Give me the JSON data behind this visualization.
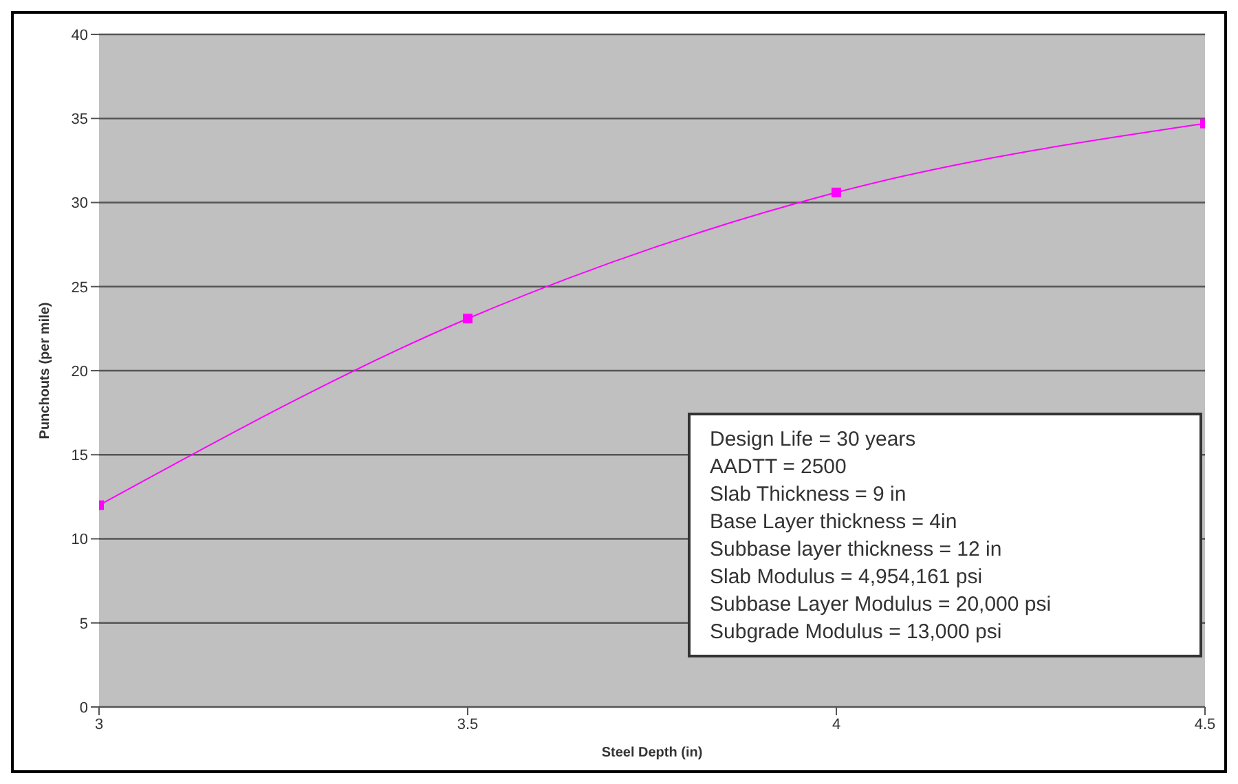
{
  "chart_data": {
    "type": "line",
    "xlabel": "Steel Depth (in)",
    "ylabel": "Punchouts (per mile)",
    "x": [
      3,
      3.5,
      4,
      4.5
    ],
    "series": [
      {
        "color": "#ff00ff",
        "values": [
          12,
          23.1,
          30.6,
          34.7
        ]
      }
    ],
    "xlim": [
      3,
      4.5
    ],
    "xticks": [
      3,
      3.5,
      4,
      4.5
    ],
    "ylim": [
      0,
      40
    ],
    "yticks": [
      0,
      5,
      10,
      15,
      20,
      25,
      30,
      35,
      40
    ],
    "grid": "y",
    "marker": "square",
    "line_style": "solid",
    "legend": false,
    "annotations": [
      "Design Life = 30 years",
      "AADTT = 2500",
      "Slab Thickness = 9 in",
      "Base Layer thickness = 4in",
      "Subbase layer thickness = 12 in",
      "Slab Modulus = 4,954,161 psi",
      "Subbase Layer Modulus = 20,000 psi",
      "Subgrade Modulus = 13,000 psi"
    ]
  }
}
